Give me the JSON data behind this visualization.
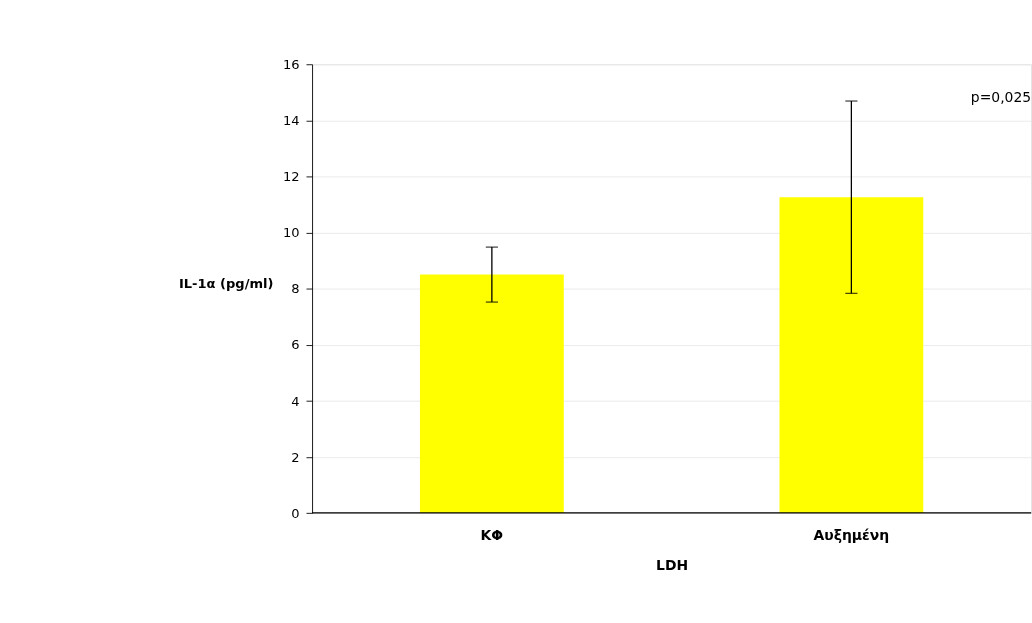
{
  "chart_data": {
    "type": "bar",
    "categories": [
      "ΚΦ",
      "Αυξημένη"
    ],
    "values": [
      8.5,
      11.26
    ],
    "errors": [
      0.98,
      3.43
    ],
    "color": "#ffff00",
    "xlabel": "LDH",
    "ylabel": "IL-1α (pg/ml)",
    "ylim": [
      0,
      16
    ],
    "yticks": [
      0,
      2,
      4,
      6,
      8,
      10,
      12,
      14,
      16
    ],
    "grid": "y",
    "annotations": [
      "p=0,025"
    ]
  }
}
